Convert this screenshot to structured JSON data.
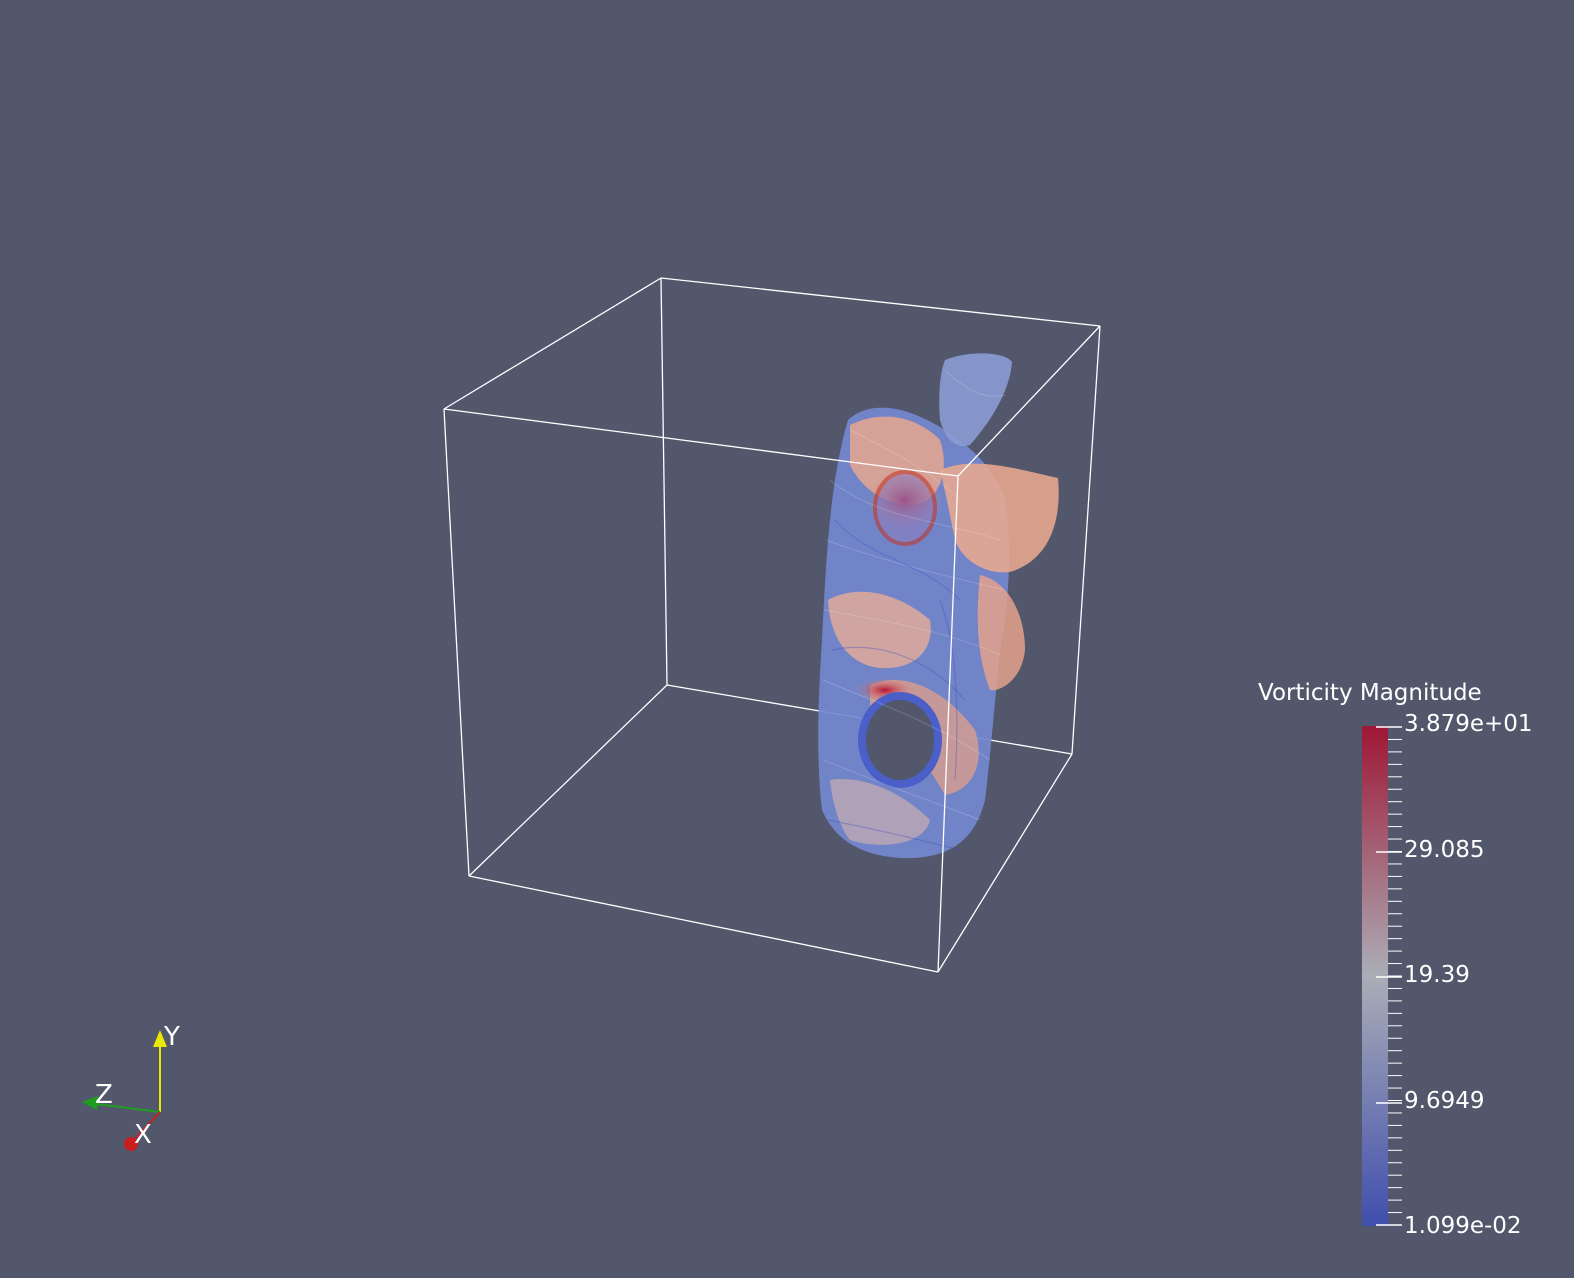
{
  "render_view": {
    "background_color": "#52576b",
    "outline_color": "#ffffff",
    "colormap": {
      "high_color": "#b40426",
      "mid_color": "#dddddd",
      "low_color": "#3b4cc0"
    },
    "scalar_bar": {
      "title": "Vorticity Magnitude",
      "range": [
        0.01099,
        38.79
      ],
      "labels": {
        "max": "3.879e+01",
        "t3": "29.085",
        "t2": "19.39",
        "t1": "9.6949",
        "min": "1.099e-02"
      }
    },
    "orientation_axes": {
      "y_label": "Y",
      "z_label": "Z",
      "x_label": "X",
      "y_color": "#e8e800",
      "z_color": "#1e9e1e",
      "x_color": "#c81e1e"
    }
  }
}
